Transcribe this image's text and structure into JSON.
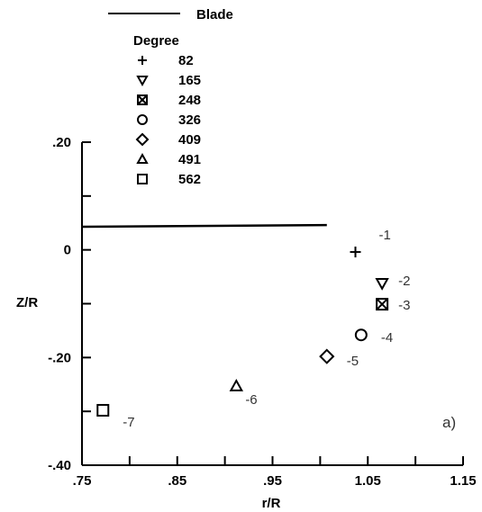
{
  "chart_data": {
    "type": "scatter",
    "title": "",
    "xlabel": "r/R",
    "ylabel": "Z/R",
    "xlim": [
      0.75,
      1.15
    ],
    "ylim": [
      -0.4,
      0.2
    ],
    "x_ticks": [
      0.75,
      0.85,
      0.95,
      1.05,
      1.15
    ],
    "x_tick_labels": [
      ".75",
      ".85",
      ".95",
      "1.05",
      "1.15"
    ],
    "y_ticks": [
      -0.4,
      -0.2,
      0,
      0.2
    ],
    "y_tick_labels": [
      "-.40",
      "-.20",
      "0",
      ".20"
    ],
    "grid": false,
    "legend_position": "top-left",
    "legend_title": "Degree",
    "blade": {
      "name": "Blade",
      "x": [
        0.75,
        1.007
      ],
      "y": [
        0.043,
        0.046
      ]
    },
    "series": [
      {
        "name": "82",
        "marker": "plus",
        "x": [
          1.037
        ],
        "y": [
          -0.004
        ],
        "label": "-1"
      },
      {
        "name": "165",
        "marker": "triangle-down",
        "x": [
          1.065
        ],
        "y": [
          -0.062
        ],
        "label": "-2"
      },
      {
        "name": "248",
        "marker": "square-x",
        "x": [
          1.065
        ],
        "y": [
          -0.101
        ],
        "label": "-3"
      },
      {
        "name": "326",
        "marker": "circle",
        "x": [
          1.043
        ],
        "y": [
          -0.158
        ],
        "label": "-4"
      },
      {
        "name": "409",
        "marker": "diamond",
        "x": [
          1.007
        ],
        "y": [
          -0.198
        ],
        "label": "-5"
      },
      {
        "name": "491",
        "marker": "triangle-up",
        "x": [
          0.912
        ],
        "y": [
          -0.253
        ],
        "label": "-6"
      },
      {
        "name": "562",
        "marker": "square",
        "x": [
          0.772
        ],
        "y": [
          -0.298
        ],
        "label": "-7"
      }
    ],
    "annotations": [
      "a)"
    ]
  }
}
